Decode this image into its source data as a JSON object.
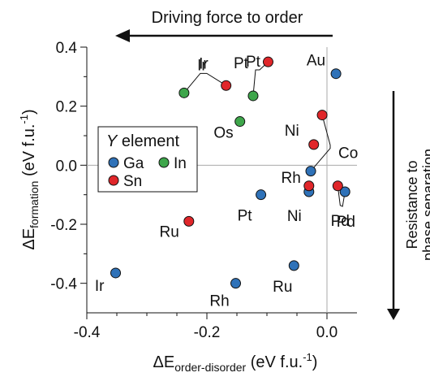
{
  "chart_data": {
    "type": "scatter",
    "title": "",
    "xlabel": {
      "main": "ΔE",
      "sub": "order-disorder",
      "unit_main": " (eV f.u.",
      "unit_sup": "-1",
      "unit_end": ")"
    },
    "ylabel": {
      "main": "ΔE",
      "sub": "formation",
      "unit_main": " (eV f.u.",
      "unit_sup": "-1",
      "unit_end": ")"
    },
    "xlim": [
      -0.4,
      0.05
    ],
    "ylim": [
      -0.5,
      0.4
    ],
    "xticks": [
      {
        "value": -0.4,
        "label": "-0.4"
      },
      {
        "value": -0.2,
        "label": "-0.2"
      },
      {
        "value": 0.0,
        "label": "0.0"
      }
    ],
    "yticks": [
      {
        "value": 0.4,
        "label": "0.4"
      },
      {
        "value": 0.2,
        "label": "0.2"
      },
      {
        "value": 0.0,
        "label": "0.0"
      },
      {
        "value": -0.2,
        "label": "-0.2"
      },
      {
        "value": -0.4,
        "label": "-0.4"
      }
    ],
    "reference_lines": {
      "x": 0.0,
      "y": 0.0
    },
    "grid": false,
    "legend": {
      "placement": "upper-left",
      "title_italic": "Y",
      "title_rest": " element",
      "entries": [
        {
          "name": "Ga",
          "color": "#2f72b8"
        },
        {
          "name": "In",
          "color": "#3ea64b"
        },
        {
          "name": "Sn",
          "color": "#e0262a"
        }
      ]
    },
    "series": [
      {
        "name": "Ga",
        "color": "#2f72b8",
        "points": [
          {
            "x": 0.015,
            "y": 0.31,
            "label": "Au"
          },
          {
            "x": -0.027,
            "y": -0.02,
            "label": "Co"
          },
          {
            "x": -0.03,
            "y": -0.09,
            "label": "Ni"
          },
          {
            "x": 0.03,
            "y": -0.09,
            "label": "Pd"
          },
          {
            "x": -0.11,
            "y": -0.1,
            "label": "Pt"
          },
          {
            "x": -0.055,
            "y": -0.34,
            "label": "Ru"
          },
          {
            "x": -0.152,
            "y": -0.4,
            "label": "Rh"
          },
          {
            "x": -0.352,
            "y": -0.365,
            "label": "Ir"
          }
        ]
      },
      {
        "name": "In",
        "color": "#3ea64b",
        "points": [
          {
            "x": -0.238,
            "y": 0.245,
            "label": "Ir"
          },
          {
            "x": -0.123,
            "y": 0.235,
            "label": "Pt"
          },
          {
            "x": -0.145,
            "y": 0.148,
            "label": "Os"
          }
        ]
      },
      {
        "name": "Sn",
        "color": "#e0262a",
        "points": [
          {
            "x": -0.168,
            "y": 0.27,
            "label": "Ir"
          },
          {
            "x": -0.098,
            "y": 0.35,
            "label": "Pt"
          },
          {
            "x": -0.008,
            "y": 0.17,
            "label": "Co"
          },
          {
            "x": -0.022,
            "y": 0.07,
            "label": "Ni"
          },
          {
            "x": -0.03,
            "y": -0.07,
            "label": "Rh"
          },
          {
            "x": 0.018,
            "y": -0.07,
            "label": "Pd"
          },
          {
            "x": -0.23,
            "y": -0.19,
            "label": "Ru"
          }
        ]
      }
    ],
    "annotations": {
      "top_arrow": "Driving force to order",
      "right_arrow_line1": "Resistance to",
      "right_arrow_line2": "phase separation"
    }
  }
}
